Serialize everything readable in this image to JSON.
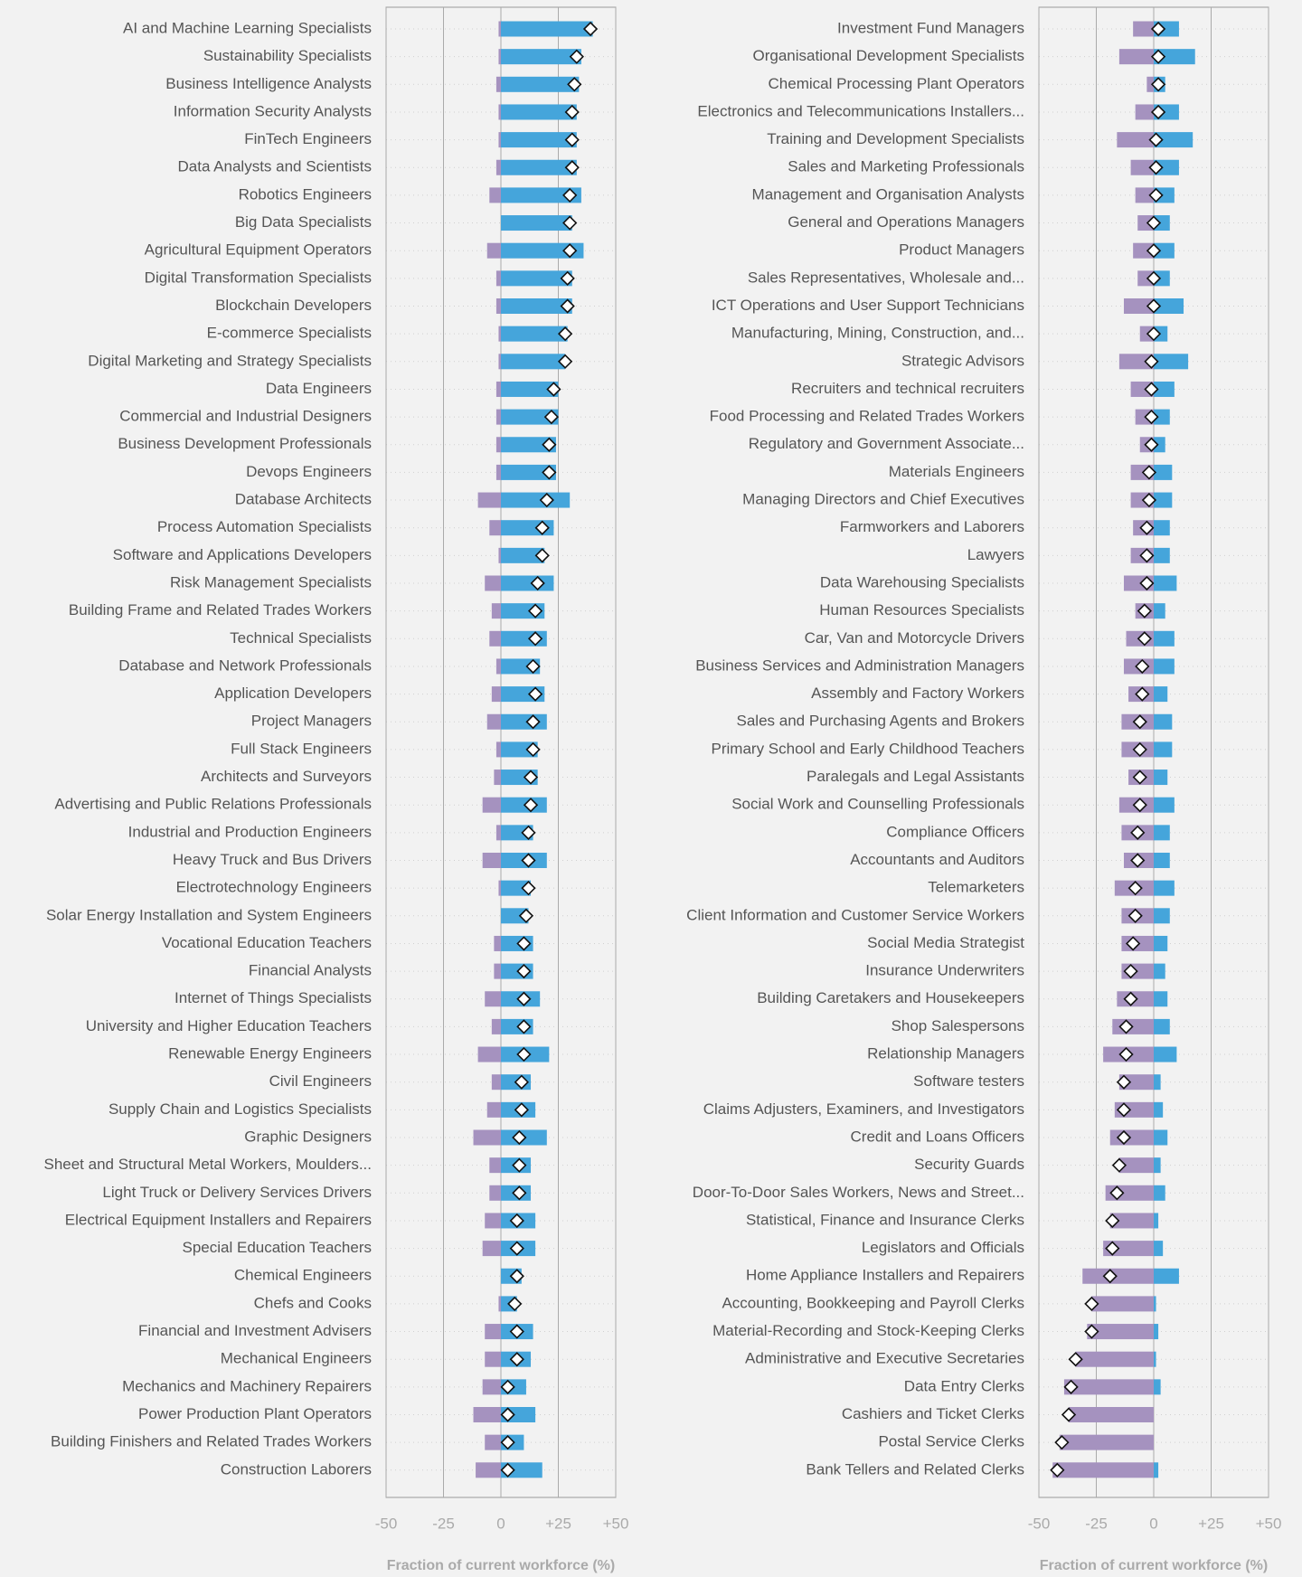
{
  "chart_data": [
    {
      "type": "bar",
      "horizontal": true,
      "xlabel": "Fraction of current workforce (%)",
      "xlim": [
        -50,
        50
      ],
      "xticks": [
        -50,
        -25,
        0,
        {
          "value": 25,
          "label": "+25"
        },
        {
          "value": 50,
          "label": "+50"
        }
      ],
      "grid": true,
      "categories": [
        "AI and Machine Learning Specialists",
        "Sustainability Specialists",
        "Business Intelligence Analysts",
        "Information Security Analysts",
        "FinTech Engineers",
        "Data Analysts and Scientists",
        "Robotics Engineers",
        "Big Data Specialists",
        "Agricultural Equipment Operators",
        "Digital Transformation Specialists",
        "Blockchain Developers",
        "E-commerce Specialists",
        "Digital Marketing and Strategy Specialists",
        "Data Engineers",
        "Commercial and Industrial Designers",
        "Business Development Professionals",
        "Devops Engineers",
        "Database Architects",
        "Process Automation Specialists",
        "Software and Applications Developers",
        "Risk Management Specialists",
        "Building Frame and Related Trades Workers",
        "Technical Specialists",
        "Database and Network Professionals",
        "Application Developers",
        "Project Managers",
        "Full Stack Engineers",
        "Architects and Surveyors",
        "Advertising and Public Relations Professionals",
        "Industrial and Production Engineers",
        "Heavy Truck and Bus Drivers",
        "Electrotechnology Engineers",
        "Solar Energy Installation and System Engineers",
        "Vocational Education Teachers",
        "Financial Analysts",
        "Internet of Things Specialists",
        "University and Higher Education Teachers",
        "Renewable Energy Engineers",
        "Civil Engineers",
        "Supply Chain and Logistics Specialists",
        "Graphic Designers",
        "Sheet and Structural Metal Workers, Moulders...",
        "Light Truck or Delivery Services Drivers",
        "Electrical Equipment Installers and Repairers",
        "Special Education Teachers",
        "Chemical Engineers",
        "Chefs and Cooks",
        "Financial and Investment Advisers",
        "Mechanical Engineers",
        "Mechanics and Machinery Repairers",
        "Power Production Plant Operators",
        "Building Finishers and Related Trades Workers",
        "Construction Laborers"
      ],
      "series": [
        {
          "color": "#a592bf",
          "values": [
            -1,
            -1,
            -2,
            -1,
            -1,
            -2,
            -5,
            0,
            -6,
            -2,
            -2,
            -1,
            -1,
            -2,
            -2,
            -2,
            -2,
            -10,
            -5,
            -1,
            -7,
            -4,
            -5,
            -2,
            -4,
            -6,
            -2,
            -3,
            -8,
            -2,
            -8,
            -1,
            0,
            -3,
            -3,
            -7,
            -4,
            -10,
            -4,
            -6,
            -12,
            -5,
            -5,
            -7,
            -8,
            0,
            -1,
            -7,
            -7,
            -8,
            -12,
            -7,
            -11
          ]
        },
        {
          "color": "#45a5db",
          "values": [
            40,
            35,
            34,
            33,
            33,
            33,
            35,
            31,
            36,
            31,
            31,
            29,
            28,
            25,
            25,
            24,
            24,
            30,
            23,
            19,
            23,
            19,
            20,
            17,
            19,
            20,
            16,
            16,
            20,
            14,
            20,
            13,
            12,
            14,
            14,
            17,
            14,
            21,
            13,
            15,
            20,
            13,
            13,
            15,
            15,
            9,
            7,
            14,
            13,
            11,
            15,
            10,
            18
          ]
        },
        {
          "color": "#ffffff",
          "marker": "diamond",
          "values": [
            39,
            33,
            32,
            31,
            31,
            31,
            30,
            30,
            30,
            29,
            29,
            28,
            28,
            23,
            22,
            21,
            21,
            20,
            18,
            18,
            16,
            15,
            15,
            14,
            15,
            14,
            14,
            13,
            13,
            12,
            12,
            12,
            11,
            10,
            10,
            10,
            10,
            10,
            9,
            9,
            8,
            8,
            8,
            7,
            7,
            7,
            6,
            7,
            7,
            3,
            3,
            3,
            3
          ]
        }
      ]
    },
    {
      "type": "bar",
      "horizontal": true,
      "xlabel": "Fraction of current workforce (%)",
      "xlim": [
        -50,
        50
      ],
      "xticks": [
        -50,
        -25,
        0,
        {
          "value": 25,
          "label": "+25"
        },
        {
          "value": 50,
          "label": "+50"
        }
      ],
      "grid": true,
      "categories": [
        "Investment Fund Managers",
        "Organisational Development Specialists",
        "Chemical Processing Plant Operators",
        "Electronics and Telecommunications Installers...",
        "Training and Development Specialists",
        "Sales and Marketing Professionals",
        "Management and Organisation Analysts",
        "General and Operations Managers",
        "Product Managers",
        "Sales Representatives, Wholesale and...",
        "ICT Operations and User Support Technicians",
        "Manufacturing, Mining, Construction, and...",
        "Strategic Advisors",
        "Recruiters and technical recruiters",
        "Food Processing and Related Trades Workers",
        "Regulatory and Government Associate...",
        "Materials Engineers",
        "Managing Directors and Chief Executives",
        "Farmworkers and Laborers",
        "Lawyers",
        "Data Warehousing Specialists",
        "Human Resources Specialists",
        "Car, Van and Motorcycle Drivers",
        "Business Services and Administration Managers",
        "Assembly and Factory Workers",
        "Sales and Purchasing Agents and Brokers",
        "Primary School and Early Childhood Teachers",
        "Paralegals and Legal Assistants",
        "Social Work and Counselling Professionals",
        "Compliance Officers",
        "Accountants and Auditors",
        "Telemarketers",
        "Client Information and Customer Service Workers",
        "Social Media Strategist",
        "Insurance Underwriters",
        "Building Caretakers and Housekeepers",
        "Shop Salespersons",
        "Relationship Managers",
        "Software testers",
        "Claims Adjusters, Examiners, and Investigators",
        "Credit and Loans Officers",
        "Security Guards",
        "Door-To-Door Sales Workers, News and Street...",
        "Statistical, Finance and Insurance Clerks",
        "Legislators and Officials",
        "Home Appliance Installers and Repairers",
        "Accounting, Bookkeeping and Payroll Clerks",
        "Material-Recording and Stock-Keeping Clerks",
        "Administrative and Executive Secretaries",
        "Data Entry Clerks",
        "Cashiers and Ticket Clerks",
        "Postal Service Clerks",
        "Bank Tellers and Related Clerks"
      ],
      "series": [
        {
          "color": "#a592bf",
          "values": [
            -9,
            -15,
            -3,
            -8,
            -16,
            -10,
            -8,
            -7,
            -9,
            -7,
            -13,
            -6,
            -15,
            -10,
            -8,
            -6,
            -10,
            -10,
            -9,
            -10,
            -13,
            -8,
            -12,
            -13,
            -11,
            -14,
            -14,
            -11,
            -15,
            -14,
            -13,
            -17,
            -14,
            -14,
            -14,
            -16,
            -18,
            -22,
            -15,
            -17,
            -19,
            -15,
            -21,
            -19,
            -22,
            -31,
            -27,
            -29,
            -34,
            -39,
            -37,
            -41,
            -44
          ]
        },
        {
          "color": "#45a5db",
          "values": [
            11,
            18,
            5,
            11,
            17,
            11,
            9,
            7,
            9,
            7,
            13,
            6,
            15,
            9,
            7,
            5,
            8,
            8,
            7,
            7,
            10,
            5,
            9,
            9,
            6,
            8,
            8,
            6,
            9,
            7,
            7,
            9,
            7,
            6,
            5,
            6,
            7,
            10,
            3,
            4,
            6,
            3,
            5,
            2,
            4,
            11,
            1,
            2,
            1,
            3,
            0,
            0,
            2
          ]
        },
        {
          "color": "#ffffff",
          "marker": "diamond",
          "values": [
            2,
            2,
            2,
            2,
            1,
            1,
            1,
            0,
            0,
            0,
            0,
            0,
            -1,
            -1,
            -1,
            -1,
            -2,
            -2,
            -3,
            -3,
            -3,
            -4,
            -4,
            -5,
            -5,
            -6,
            -6,
            -6,
            -6,
            -7,
            -7,
            -8,
            -8,
            -9,
            -10,
            -10,
            -12,
            -12,
            -13,
            -13,
            -13,
            -15,
            -16,
            -18,
            -18,
            -19,
            -27,
            -27,
            -34,
            -36,
            -37,
            -40,
            -42
          ]
        }
      ]
    }
  ]
}
